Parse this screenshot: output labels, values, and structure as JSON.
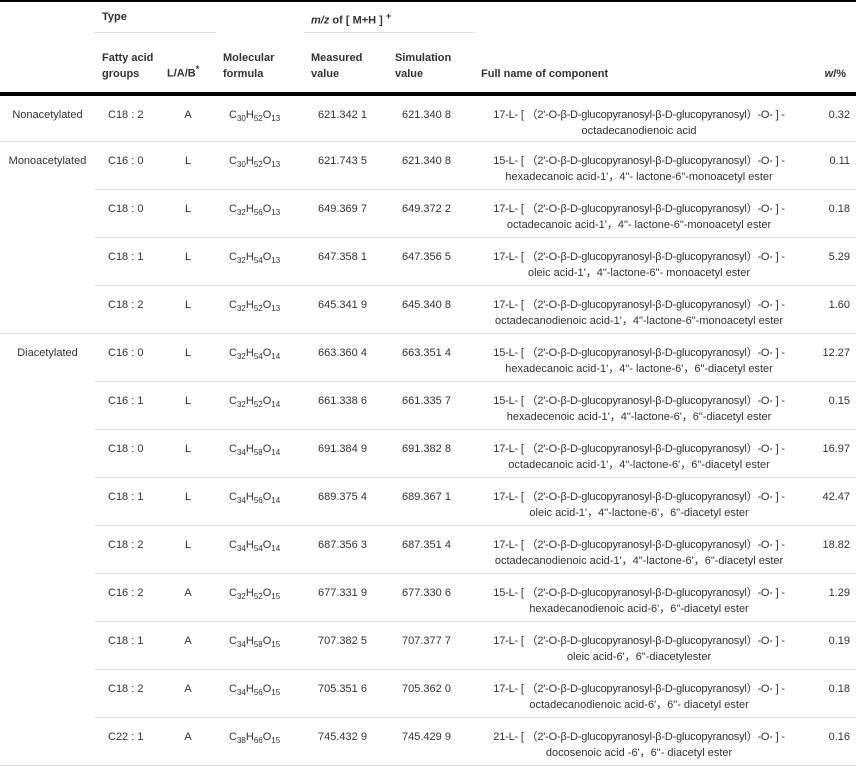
{
  "header": {
    "type": "Type",
    "mz_prefix": "m/z",
    "mz_suffix": " of  [ M+H ] ",
    "mz_sup": "+",
    "fatty": [
      "Fatty acid",
      "groups"
    ],
    "lab": "L/A/B",
    "lab_sup": "*",
    "formula": [
      "Molecular",
      "formula"
    ],
    "measured": [
      "Measured",
      "value"
    ],
    "simulation": [
      "Simulation",
      "value"
    ],
    "fullname": "Full name of component",
    "w_prefix": "w",
    "w_suffix": "/%"
  },
  "rows": [
    {
      "group": "Nonacetylated",
      "fa": "C18 : 2",
      "lab": "A",
      "f": [
        "30",
        "52",
        "13"
      ],
      "meas": "621.342 1",
      "sim": "621.340 8",
      "n1": "17-L- [ （2'-O-β-D-glucopyranosyl-β-D-glucopyranosyl）-O- ] -",
      "n2": "octadecanodienoic acid",
      "w": "0.32"
    },
    {
      "group": "Monoacetylated",
      "fa": "C16 : 0",
      "lab": "L",
      "f": [
        "30",
        "52",
        "13"
      ],
      "meas": "621.743 5",
      "sim": "621.340 8",
      "n1": "15-L- [ （2'-O-β-D-glucopyranosyl-β-D-glucopyranosyl）-O- ] -",
      "n2": "hexadecanoic acid-1'，4\"- lactone-6\"-monoacetyl ester",
      "w": "0.11"
    },
    {
      "group": "",
      "fa": "C18 : 0",
      "lab": "L",
      "f": [
        "32",
        "56",
        "13"
      ],
      "meas": "649.369 7",
      "sim": "649.372 2",
      "n1": "17-L- [ （2'-O-β-D-glucopyranosyl-β-D-glucopyranosyl）-O- ] -",
      "n2": "octadecanoic acid-1'，4\"- lactone-6\"-monoacetyl ester",
      "w": "0.18"
    },
    {
      "group": "",
      "fa": "C18 : 1",
      "lab": "L",
      "f": [
        "32",
        "54",
        "13"
      ],
      "meas": "647.358 1",
      "sim": "647.356 5",
      "n1": "17-L- [ （2'-O-β-D-glucopyranosyl-β-D-glucopyranosyl）-O- ] -",
      "n2": "oleic acid-1'，4\"-lactone-6\"- monoacetyl ester",
      "w": "5.29"
    },
    {
      "group": "",
      "fa": "C18 : 2",
      "lab": "L",
      "f": [
        "32",
        "52",
        "13"
      ],
      "meas": "645.341 9",
      "sim": "645.340 8",
      "n1": "17-L- [ （2'-O-β-D-glucopyranosyl-β-D-glucopyranosyl）-O- ] -",
      "n2": "octadecanodienoic acid-1'，4\"-lactone-6\"-monoacetyl ester",
      "w": "1.60"
    },
    {
      "group": "Diacetylated",
      "fa": "C16 : 0",
      "lab": "L",
      "f": [
        "32",
        "54",
        "14"
      ],
      "meas": "663.360 4",
      "sim": "663.351 4",
      "n1": "15-L- [ （2'-O-β-D-glucopyranosyl-β-D-glucopyranosyl）-O- ] -",
      "n2": "hexadecanoic acid-1'，4\"- lactone-6'，6\"-diacetyl ester",
      "w": "12.27"
    },
    {
      "group": "",
      "fa": "C16 : 1",
      "lab": "L",
      "f": [
        "32",
        "52",
        "14"
      ],
      "meas": "661.338 6",
      "sim": "661.335 7",
      "n1": "15-L- [ （2'-O-β-D-glucopyranosyl-β-D-glucopyranosyl）-O- ] -",
      "n2": "hexadecenoic acid-1'，4\"-lactone-6'，6\"-diacetyl ester",
      "w": "0.15"
    },
    {
      "group": "",
      "fa": "C18 : 0",
      "lab": "L",
      "f": [
        "34",
        "58",
        "14"
      ],
      "meas": "691.384 9",
      "sim": "691.382 8",
      "n1": "17-L- [ （2'-O-β-D-glucopyranosyl-β-D-glucopyranosyl）-O- ] -",
      "n2": "octadecanoic acid-1'，4\"-lactone-6'，6\"-diacetyl ester",
      "w": "16.97"
    },
    {
      "group": "",
      "fa": "C18 : 1",
      "lab": "L",
      "f": [
        "34",
        "56",
        "14"
      ],
      "meas": "689.375 4",
      "sim": "689.367 1",
      "n1": "17-L- [ （2'-O-β-D-glucopyranosyl-β-D-glucopyranosyl）-O- ] -",
      "n2": "oleic acid-1'，4\"-lactone-6'，6\"-diacetyl ester",
      "w": "42.47"
    },
    {
      "group": "",
      "fa": "C18 : 2",
      "lab": "L",
      "f": [
        "34",
        "54",
        "14"
      ],
      "meas": "687.356 3",
      "sim": "687.351 4",
      "n1": "17-L- [ （2'-O-β-D-glucopyranosyl-β-D-glucopyranosyl）-O- ] -",
      "n2": "octadecanodienoic acid-1'，4\"-lactone-6'，6\"-diacetyl ester",
      "w": "18.82"
    },
    {
      "group": "",
      "fa": "C16 : 2",
      "lab": "A",
      "f": [
        "32",
        "52",
        "15"
      ],
      "meas": "677.331 9",
      "sim": "677.330 6",
      "n1": "15-L- [ （2'-O-β-D-glucopyranosyl-β-D-glucopyranosyl）-O- ] -",
      "n2": "hexadecanodienoic acid-6'，6\"-diacetyl ester",
      "w": "1.29"
    },
    {
      "group": "",
      "fa": "C18 : 1",
      "lab": "A",
      "f": [
        "34",
        "58",
        "15"
      ],
      "meas": "707.382 5",
      "sim": "707.377 7",
      "n1": "17-L- [ （2'-O-β-D-glucopyranosyl-β-D-glucopyranosyl）-O- ] -",
      "n2": "oleic acid-6'，6\"-diacetylester",
      "w": "0.19"
    },
    {
      "group": "",
      "fa": "C18 : 2",
      "lab": "A",
      "f": [
        "34",
        "56",
        "15"
      ],
      "meas": "705.351 6",
      "sim": "705.362 0",
      "n1": "17-L- [ （2'-O-β-D-glucopyranosyl-β-D-glucopyranosyl）-O- ] -",
      "n2": "octadecanodienoic acid-6'，6\"- diacetyl ester",
      "w": "0.18"
    },
    {
      "group": "",
      "fa": "C22 : 1",
      "lab": "A",
      "f": [
        "38",
        "66",
        "15"
      ],
      "meas": "745.432 9",
      "sim": "745.429 9",
      "n1": "21-L- [ （2'-O-β-D-glucopyranosyl-β-D-glucopyranosyl）-O- ] -",
      "n2": "docosenoic acid -6'，6\"- diacetyl ester",
      "w": "0.16"
    }
  ]
}
